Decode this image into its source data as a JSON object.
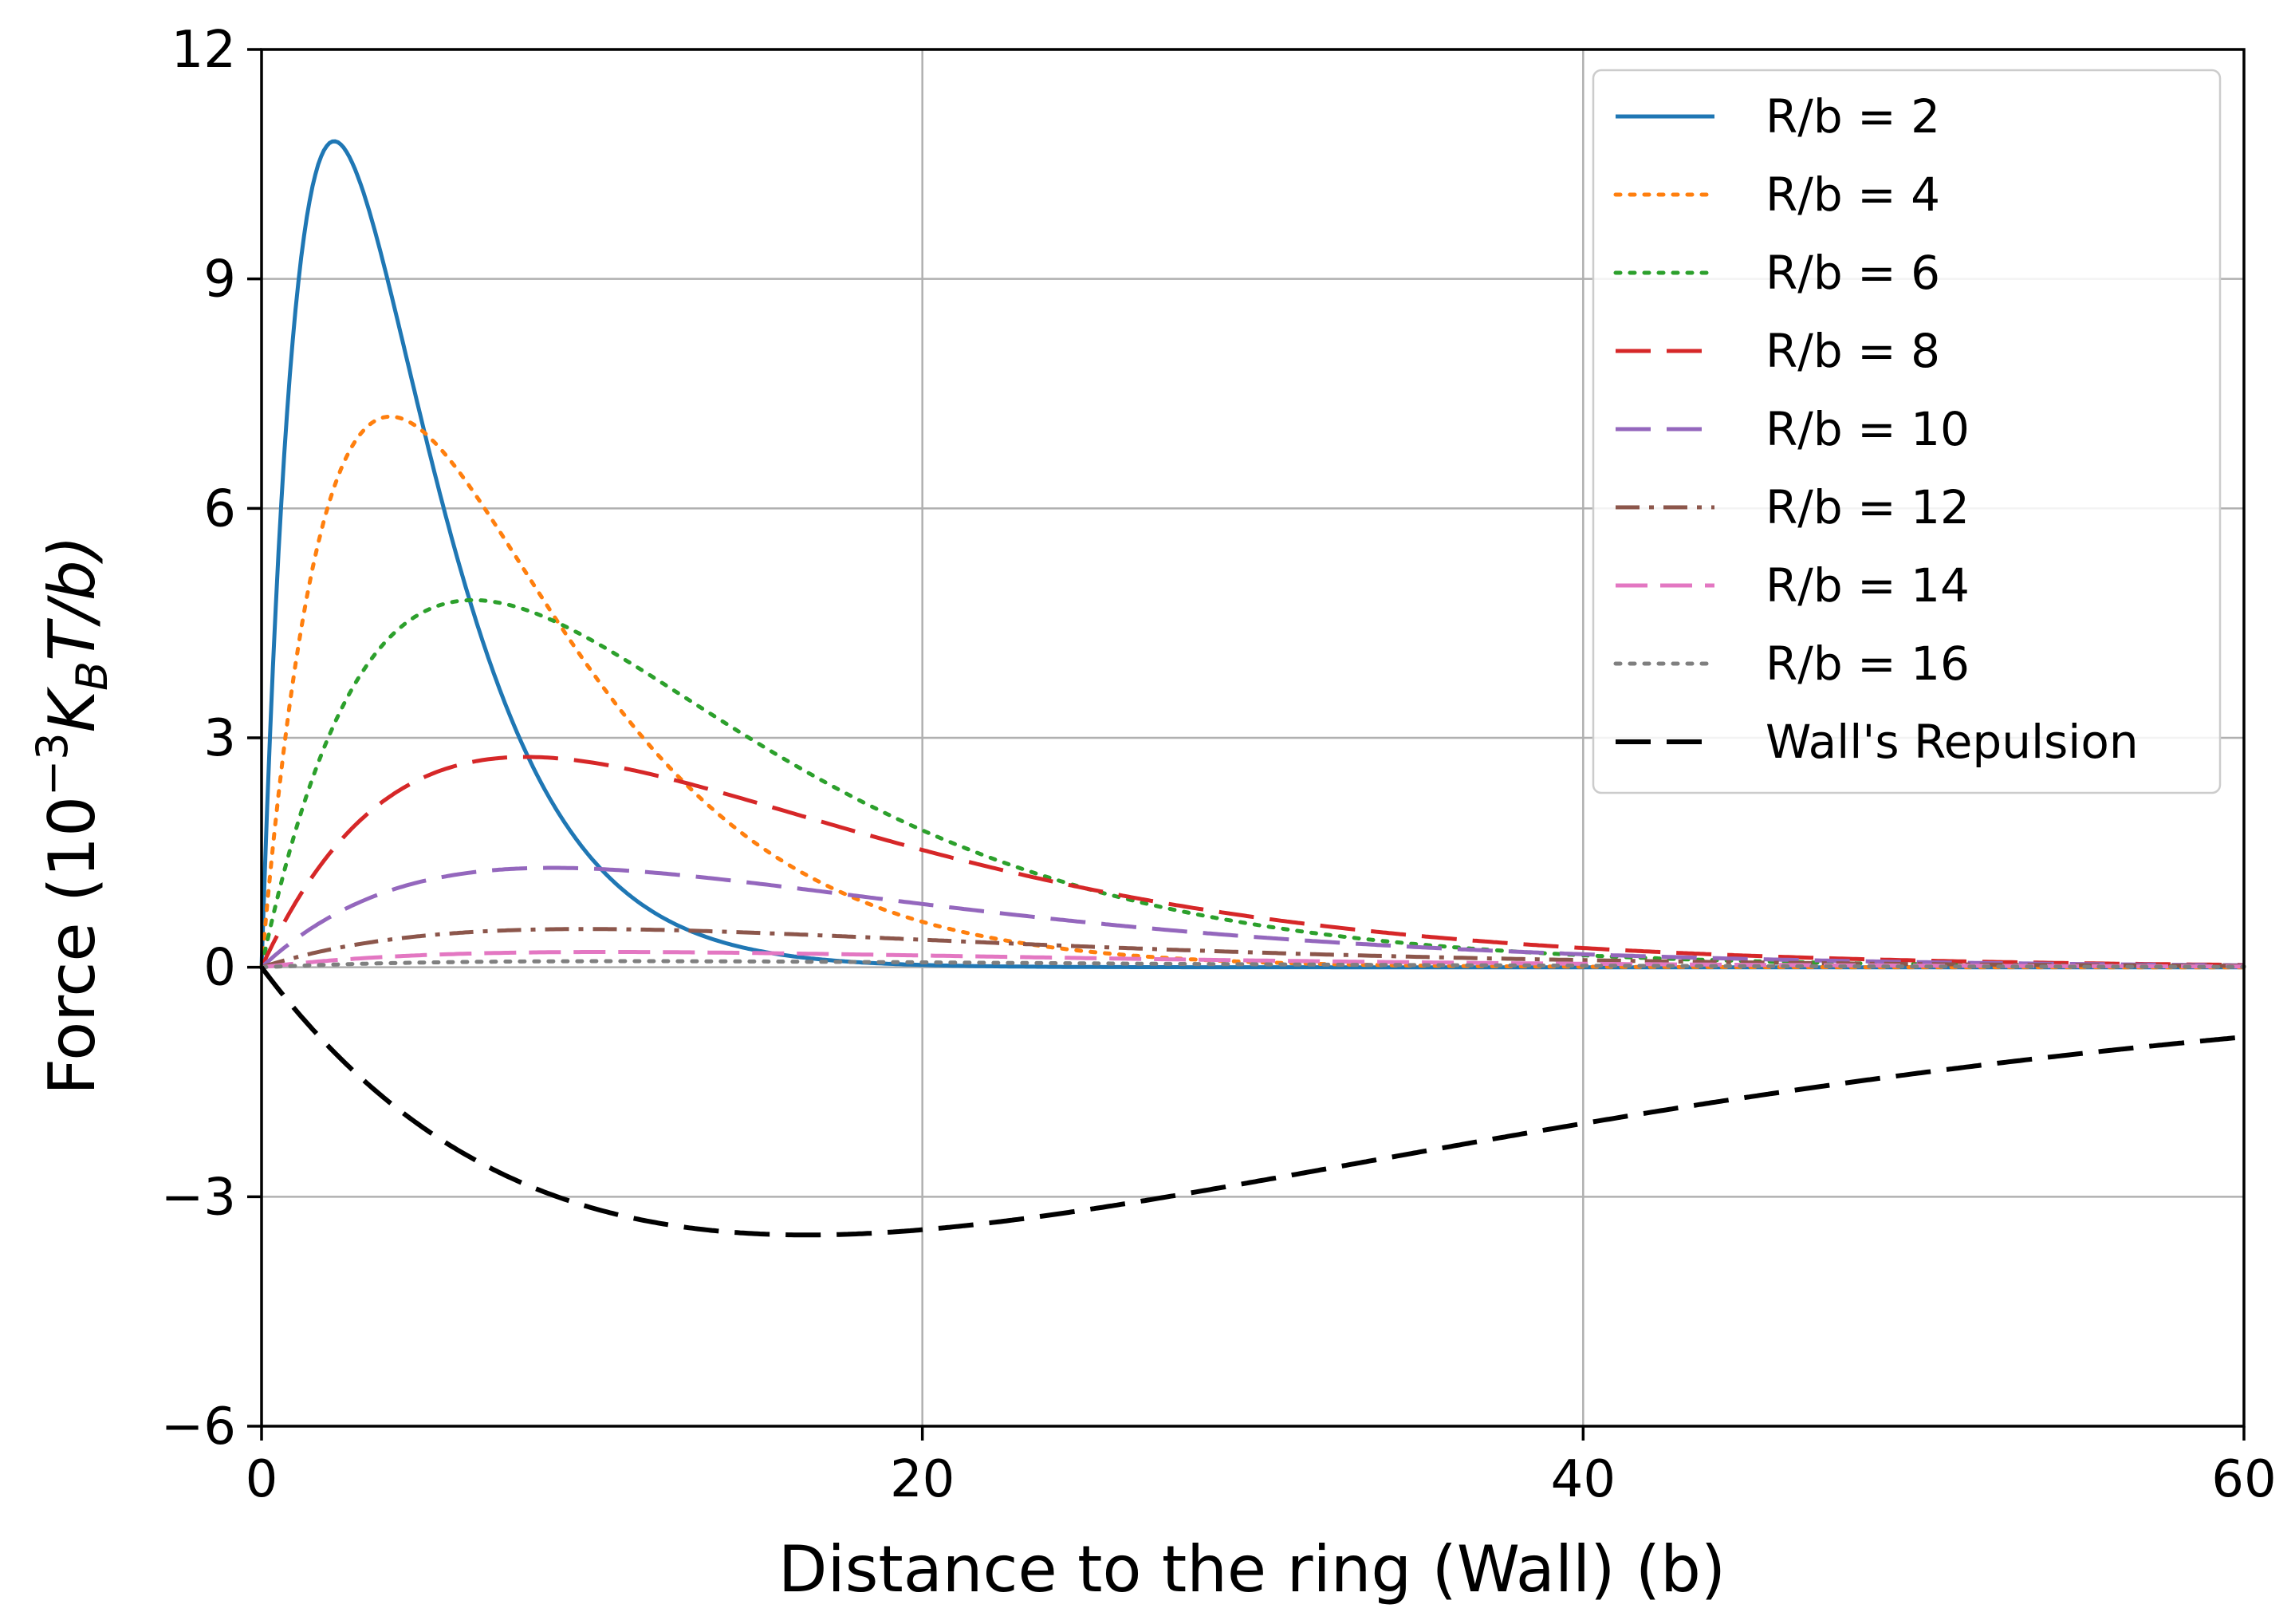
{
  "chart_data": {
    "type": "line",
    "xlabel": "Distance to the ring (Wall) (b)",
    "ylabel": {
      "prefix": "Force (10",
      "exponent": "−3",
      "k": "K",
      "k_sub": "B",
      "suffix": "T/b)"
    },
    "xlim": [
      0,
      60
    ],
    "ylim": [
      -6,
      12
    ],
    "xticks": [
      0,
      20,
      40,
      60
    ],
    "xtick_labels": [
      "0",
      "20",
      "40",
      "60"
    ],
    "yticks": [
      -6,
      -3,
      0,
      3,
      6,
      9,
      12
    ],
    "ytick_labels": [
      "−6",
      "−3",
      "0",
      "3",
      "6",
      "9",
      "12"
    ],
    "grid": true,
    "legend_position": "top-right",
    "series": [
      {
        "name": "R/b = 2",
        "color": "#1f77b4",
        "dash": "solid",
        "peak_x": 2.2,
        "peak_y": 10.8,
        "zero_at_origin": true
      },
      {
        "name": "R/b = 4",
        "color": "#ff7f0e",
        "dash": "dotted",
        "peak_x": 3.9,
        "peak_y": 7.2,
        "zero_at_origin": true
      },
      {
        "name": "R/b = 6",
        "color": "#2ca02c",
        "dash": "dotted",
        "peak_x": 6.4,
        "peak_y": 4.8,
        "zero_at_origin": true
      },
      {
        "name": "R/b = 8",
        "color": "#d62728",
        "dash": "dashed",
        "peak_x": 8.0,
        "peak_y": 2.75,
        "zero_at_origin": true
      },
      {
        "name": "R/b = 10",
        "color": "#9467bd",
        "dash": "dashed",
        "peak_x": 8.8,
        "peak_y": 1.3,
        "zero_at_origin": true
      },
      {
        "name": "R/b = 12",
        "color": "#8c564b",
        "dash": "dashdot",
        "peak_x": 9.8,
        "peak_y": 0.5,
        "zero_at_origin": true
      },
      {
        "name": "R/b = 14",
        "color": "#e377c2",
        "dash": "longdash",
        "peak_x": 10.5,
        "peak_y": 0.2,
        "zero_at_origin": true
      },
      {
        "name": "R/b = 16",
        "color": "#7f7f7f",
        "dash": "dotted",
        "peak_x": 11.0,
        "peak_y": 0.08,
        "zero_at_origin": true
      },
      {
        "name": "Wall's Repulsion",
        "color": "#000000",
        "dash": "dashed",
        "peak_x": 16.5,
        "peak_y": -3.5,
        "zero_at_origin": true
      }
    ]
  }
}
